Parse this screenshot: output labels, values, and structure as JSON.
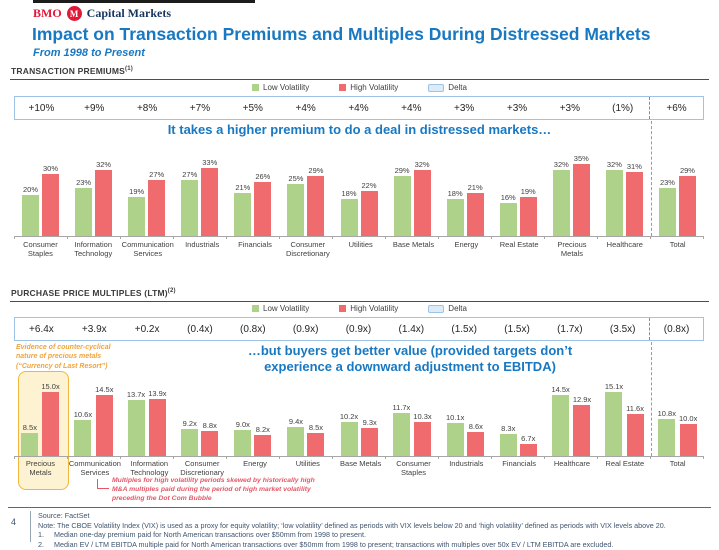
{
  "brand": {
    "name": "BMO",
    "logo_letter": "M",
    "division": "Capital Markets",
    "brand_red": "#e31837",
    "brand_navy": "#16355f"
  },
  "title": "Impact on Transaction Premiums and Multiples During Distressed Markets",
  "subtitle": "From 1998 to Present",
  "accent_blue": "#1878c2",
  "chart_data": [
    {
      "type": "bar",
      "title": "TRANSACTION PREMIUMS",
      "title_sup": "(1)",
      "legend": [
        "Low Volatility",
        "High Volatility",
        "Delta"
      ],
      "legend_position": "top",
      "grid": false,
      "ylim": [
        0,
        40
      ],
      "categories": [
        "Consumer Staples",
        "Information Technology",
        "Communication Services",
        "Industrials",
        "Financials",
        "Consumer Discretionary",
        "Utilities",
        "Base Metals",
        "Energy",
        "Real Estate",
        "Precious Metals",
        "Healthcare",
        "Total"
      ],
      "series": [
        {
          "name": "Low Volatility",
          "color": "#aed289",
          "unit": "%",
          "values": [
            20,
            23,
            19,
            27,
            21,
            25,
            18,
            29,
            18,
            16,
            32,
            32,
            23
          ]
        },
        {
          "name": "High Volatility",
          "color": "#f06b6e",
          "unit": "%",
          "values": [
            30,
            32,
            27,
            33,
            26,
            29,
            22,
            32,
            21,
            19,
            35,
            31,
            29
          ]
        }
      ],
      "delta_row": [
        "+10%",
        "+9%",
        "+8%",
        "+7%",
        "+5%",
        "+4%",
        "+4%",
        "+4%",
        "+3%",
        "+3%",
        "+3%",
        "(1%)",
        "+6%"
      ],
      "annotation": "It takes a higher premium to do a deal in distressed markets…"
    },
    {
      "type": "bar",
      "title": "PURCHASE PRICE MULTIPLES (LTM)",
      "title_sup": "(2)",
      "legend": [
        "Low Volatility",
        "High Volatility",
        "Delta"
      ],
      "legend_position": "top",
      "grid": false,
      "ylim": [
        5,
        16
      ],
      "categories": [
        "Precious Metals",
        "Communication Services",
        "Information Technology",
        "Consumer Discretionary",
        "Energy",
        "Utilities",
        "Base Metals",
        "Consumer Staples",
        "Industrials",
        "Financials",
        "Healthcare",
        "Real Estate",
        "Total"
      ],
      "series": [
        {
          "name": "Low Volatility",
          "color": "#aed289",
          "unit": "x",
          "values": [
            8.5,
            10.6,
            13.7,
            9.2,
            9.0,
            9.4,
            10.2,
            11.7,
            10.1,
            8.3,
            14.5,
            15.1,
            10.8
          ]
        },
        {
          "name": "High Volatility",
          "color": "#f06b6e",
          "unit": "x",
          "values": [
            15.0,
            14.5,
            13.9,
            8.8,
            8.2,
            8.5,
            9.3,
            10.3,
            8.6,
            6.7,
            12.9,
            11.6,
            10.0
          ]
        }
      ],
      "delta_row": [
        "+6.4x",
        "+3.9x",
        "+0.2x",
        "(0.4x)",
        "(0.8x)",
        "(0.9x)",
        "(0.9x)",
        "(1.4x)",
        "(1.5x)",
        "(1.5x)",
        "(1.7x)",
        "(3.5x)",
        "(0.8x)"
      ],
      "annotation": "…but buyers get better value (provided targets don’t\nexperience a downward adjustment to EBITDA)",
      "side_note": "Evidence of counter-cyclical\nnature of precious metals\n(“Currency of Last Resort”)",
      "highlight_category": "Precious Metals",
      "callout": "Multiples for high volatility periods skewed by historically high\nM&A multiples paid during the period of high market volatility\npreceding the Dot Com Bubble"
    }
  ],
  "footer": {
    "page": "4",
    "source": "Source: FactSet",
    "note": "Note: The CBOE Volatility Index (VIX) is used as a proxy for equity volatility; ‘low volatility’ defined as periods with VIX levels below 20 and ‘high volatility’ defined as periods with VIX levels above 20.",
    "footnotes": [
      {
        "num": "1.",
        "text": "Median one-day premium paid for North American transactions over $50mm from 1998 to present."
      },
      {
        "num": "2.",
        "text": "Median EV / LTM EBITDA multiple paid for North American transactions over $50mm from 1998 to present; transactions with multiples over 50x EV / LTM EBITDA are excluded."
      }
    ]
  }
}
